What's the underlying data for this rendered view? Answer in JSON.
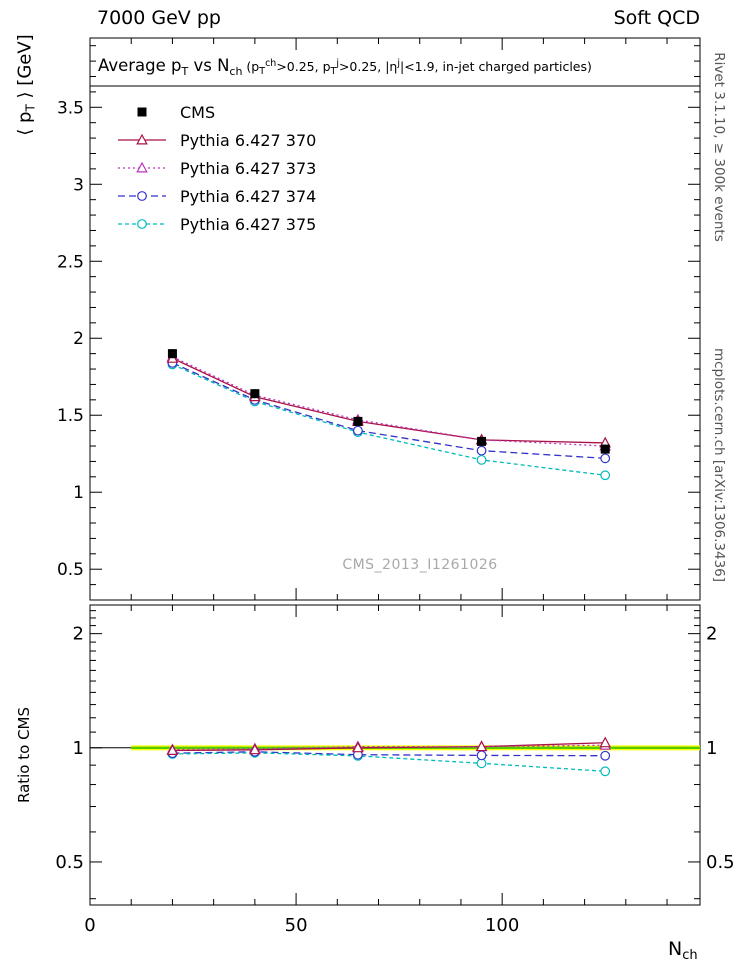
{
  "header": {
    "left": "7000 GeV pp",
    "right": "Soft QCD"
  },
  "title_segments": [
    {
      "t": "Average p"
    },
    {
      "t": "T",
      "s": "sub"
    },
    {
      "t": " vs N"
    },
    {
      "t": "ch",
      "s": "sub"
    },
    {
      "t": "  (p",
      "sm": true
    },
    {
      "t": "T",
      "s": "sub",
      "sm": true
    },
    {
      "t": "ch",
      "s": "sup",
      "sm": true
    },
    {
      "t": ">0.25, p",
      "sm": true
    },
    {
      "t": "T",
      "s": "sub",
      "sm": true
    },
    {
      "t": "j",
      "s": "sup",
      "sm": true
    },
    {
      "t": ">0.25, |η",
      "sm": true
    },
    {
      "t": "j",
      "s": "sup",
      "sm": true
    },
    {
      "t": "|<1.9, in-jet charged particles)",
      "sm": true
    }
  ],
  "ylabel_main_segments": [
    {
      "t": "⟨ p"
    },
    {
      "t": "T",
      "s": "sub"
    },
    {
      "t": " ⟩ [GeV]"
    }
  ],
  "ylabel_ratio": "Ratio to CMS",
  "xlabel_segments": [
    {
      "t": "N"
    },
    {
      "t": "ch",
      "s": "sub"
    }
  ],
  "watermark": "CMS_2013_I1261026",
  "side_top": "Rivet 3.1.10, ≥ 300k events",
  "side_bottom": "mcplots.cern.ch [arXiv:1306.3436]",
  "colors": {
    "frame": "#000000",
    "band": "#ffff00",
    "band_line": "#55cc00",
    "watermark": "#a9a9a9"
  },
  "chart_data": {
    "type": "line",
    "title": "Average pT vs Nch (pT^ch>0.25, pT^j>0.25, |eta^j|<1.9, in-jet charged particles)",
    "xlabel": "N_ch",
    "ylabel": "<pT> [GeV]",
    "legend_position": "top-left",
    "grid": false,
    "x": [
      20,
      40,
      65,
      95,
      125
    ],
    "xlim": [
      0,
      148
    ],
    "xticks": [
      0,
      50,
      100
    ],
    "main": {
      "scale": "linear",
      "ylim": [
        0.3,
        3.95
      ],
      "yticks": [
        0.5,
        1,
        1.5,
        2,
        2.5,
        3,
        3.5
      ],
      "series": [
        {
          "id": "cms",
          "name": "CMS",
          "color": "#000000",
          "marker": "square-filled",
          "line": "none",
          "values": [
            1.9,
            1.64,
            1.46,
            1.33,
            1.28
          ],
          "yerr": [
            0.03,
            0.03,
            0.03,
            0.03,
            0.03
          ]
        },
        {
          "id": "py370",
          "name": "Pythia 6.427 370",
          "color": "#aa1144",
          "marker": "triangle-open",
          "dash": "",
          "values": [
            1.87,
            1.62,
            1.46,
            1.34,
            1.32
          ]
        },
        {
          "id": "py373",
          "name": "Pythia 6.427 373",
          "color": "#bb33bb",
          "marker": "triangle-open",
          "dash": "2,3",
          "values": [
            1.88,
            1.63,
            1.47,
            1.34,
            1.3
          ]
        },
        {
          "id": "py374",
          "name": "Pythia 6.427 374",
          "color": "#3333cc",
          "marker": "circle-open",
          "dash": "7,4",
          "values": [
            1.84,
            1.6,
            1.4,
            1.27,
            1.22
          ]
        },
        {
          "id": "py375",
          "name": "Pythia 6.427 375",
          "color": "#00bbbb",
          "marker": "circle-open",
          "dash": "4,3",
          "values": [
            1.83,
            1.59,
            1.39,
            1.21,
            1.11
          ]
        }
      ]
    },
    "ratio": {
      "scale": "log",
      "ylim": [
        0.385,
        2.38
      ],
      "yticks": [
        0.5,
        1,
        2
      ],
      "band": {
        "x_start": 10,
        "center": 1.0,
        "halfwidth": 0.015
      },
      "series": [
        {
          "id": "py370",
          "values": [
            0.984,
            0.988,
            1.0,
            1.007,
            1.031
          ]
        },
        {
          "id": "py373",
          "values": [
            0.989,
            0.994,
            1.007,
            1.007,
            1.016
          ]
        },
        {
          "id": "py374",
          "values": [
            0.968,
            0.976,
            0.959,
            0.955,
            0.953
          ]
        },
        {
          "id": "py375",
          "values": [
            0.963,
            0.97,
            0.952,
            0.91,
            0.867
          ]
        }
      ]
    }
  }
}
